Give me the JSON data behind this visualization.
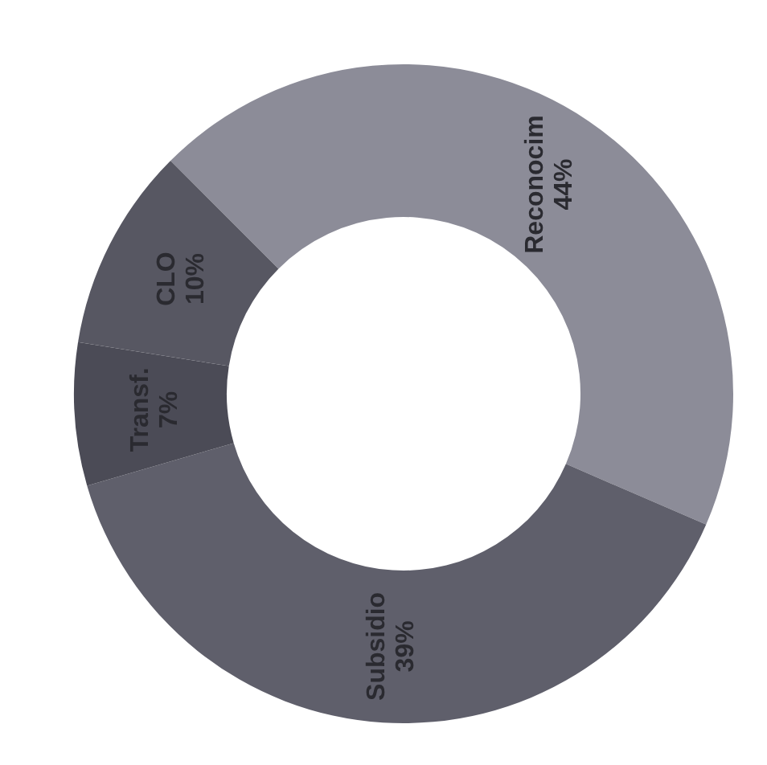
{
  "chart_data": {
    "type": "donut",
    "categories": [
      "Reconocim",
      "Subsidio",
      "Transf.",
      "CLO"
    ],
    "values": [
      44,
      39,
      7,
      10
    ],
    "value_labels": [
      "44%",
      "39%",
      "7%",
      "10%"
    ],
    "colors": [
      "#8c8c98",
      "#5f5f6b",
      "#4b4b56",
      "#575762"
    ],
    "legend": false
  }
}
